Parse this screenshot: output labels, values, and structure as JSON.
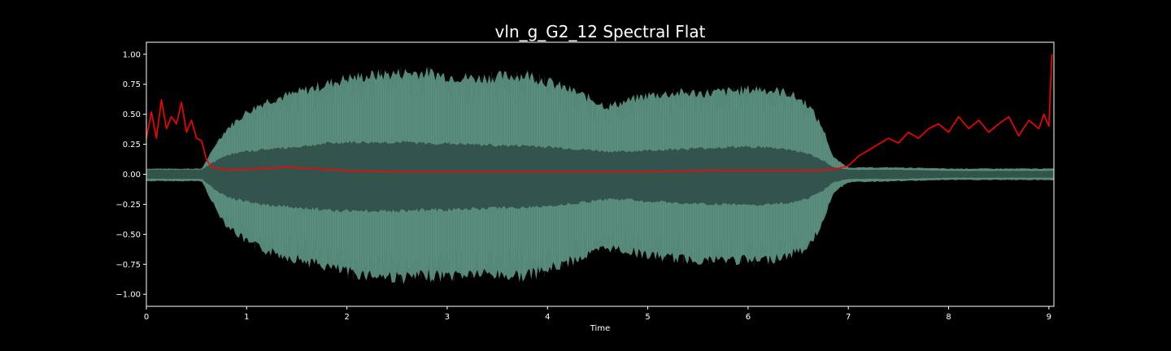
{
  "chart_data": {
    "type": "line",
    "title": "vln_g_G2_12 Spectral Flat",
    "xlabel": "Time",
    "ylabel": "",
    "xlim": [
      0,
      9.05
    ],
    "ylim": [
      -1.1,
      1.1
    ],
    "x_ticks": [
      0,
      1,
      2,
      3,
      4,
      5,
      6,
      7,
      8,
      9
    ],
    "x_tick_labels": [
      "0",
      "1",
      "2",
      "3",
      "4",
      "5",
      "6",
      "7",
      "8",
      "9"
    ],
    "y_ticks": [
      -1.0,
      -0.75,
      -0.5,
      -0.25,
      0.0,
      0.25,
      0.5,
      0.75,
      1.0
    ],
    "y_tick_labels": [
      "−1.00",
      "−0.75",
      "−0.50",
      "−0.25",
      "0.00",
      "0.25",
      "0.50",
      "0.75",
      "1.00"
    ],
    "grid": false,
    "colors": {
      "background": "#000000",
      "axes": "#ffffff",
      "waveform_outer": "#5a8f80",
      "waveform_inner": "#33544c",
      "spectral_flatness": "#ff0000"
    },
    "series": [
      {
        "kind": "waveform-envelope",
        "x": [
          0,
          0.3,
          0.55,
          0.62,
          0.7,
          0.8,
          1.0,
          1.2,
          1.5,
          1.8,
          2.0,
          2.3,
          2.6,
          2.8,
          3.0,
          3.3,
          3.6,
          3.8,
          4.0,
          4.3,
          4.6,
          4.8,
          5.0,
          5.3,
          5.6,
          5.9,
          6.1,
          6.4,
          6.6,
          6.75,
          6.85,
          7.0,
          7.5,
          8.0,
          8.5,
          9.05
        ],
        "upper": [
          0.05,
          0.05,
          0.05,
          0.15,
          0.28,
          0.4,
          0.55,
          0.65,
          0.72,
          0.8,
          0.85,
          0.88,
          0.9,
          0.9,
          0.87,
          0.85,
          0.87,
          0.88,
          0.82,
          0.72,
          0.6,
          0.65,
          0.7,
          0.72,
          0.72,
          0.74,
          0.76,
          0.72,
          0.62,
          0.4,
          0.15,
          0.06,
          0.06,
          0.05,
          0.05,
          0.05
        ],
        "lower": [
          -0.06,
          -0.06,
          -0.06,
          -0.18,
          -0.32,
          -0.45,
          -0.6,
          -0.68,
          -0.75,
          -0.82,
          -0.87,
          -0.9,
          -0.92,
          -0.9,
          -0.9,
          -0.88,
          -0.9,
          -0.9,
          -0.85,
          -0.75,
          -0.65,
          -0.68,
          -0.72,
          -0.75,
          -0.76,
          -0.76,
          -0.77,
          -0.72,
          -0.65,
          -0.42,
          -0.16,
          -0.07,
          -0.06,
          -0.05,
          -0.05,
          -0.05
        ],
        "inner_upper": [
          0.04,
          0.04,
          0.04,
          0.08,
          0.12,
          0.17,
          0.2,
          0.22,
          0.24,
          0.27,
          0.28,
          0.28,
          0.28,
          0.27,
          0.27,
          0.26,
          0.25,
          0.25,
          0.24,
          0.22,
          0.2,
          0.2,
          0.21,
          0.22,
          0.23,
          0.24,
          0.24,
          0.22,
          0.18,
          0.12,
          0.06,
          0.04,
          0.04,
          0.03,
          0.03,
          0.03
        ],
        "inner_lower": [
          -0.04,
          -0.04,
          -0.04,
          -0.09,
          -0.14,
          -0.2,
          -0.24,
          -0.27,
          -0.29,
          -0.31,
          -0.32,
          -0.32,
          -0.32,
          -0.31,
          -0.31,
          -0.3,
          -0.29,
          -0.29,
          -0.28,
          -0.25,
          -0.22,
          -0.22,
          -0.24,
          -0.25,
          -0.26,
          -0.27,
          -0.27,
          -0.25,
          -0.21,
          -0.14,
          -0.07,
          -0.04,
          -0.04,
          -0.03,
          -0.03,
          -0.03
        ]
      },
      {
        "kind": "spectral-flatness",
        "x": [
          0.0,
          0.05,
          0.1,
          0.15,
          0.2,
          0.25,
          0.3,
          0.35,
          0.4,
          0.45,
          0.5,
          0.55,
          0.6,
          0.65,
          0.7,
          0.8,
          1.0,
          1.2,
          1.4,
          1.6,
          1.8,
          2.0,
          2.5,
          3.0,
          3.5,
          4.0,
          4.5,
          5.0,
          5.5,
          6.0,
          6.4,
          6.7,
          6.8,
          6.9,
          7.0,
          7.1,
          7.2,
          7.3,
          7.4,
          7.5,
          7.6,
          7.7,
          7.8,
          7.9,
          8.0,
          8.1,
          8.2,
          8.3,
          8.4,
          8.5,
          8.6,
          8.7,
          8.8,
          8.9,
          8.95,
          9.0,
          9.03
        ],
        "y": [
          0.3,
          0.52,
          0.3,
          0.62,
          0.38,
          0.48,
          0.42,
          0.6,
          0.35,
          0.45,
          0.3,
          0.28,
          0.12,
          0.06,
          0.05,
          0.04,
          0.04,
          0.05,
          0.06,
          0.05,
          0.04,
          0.03,
          0.02,
          0.02,
          0.02,
          0.02,
          0.02,
          0.02,
          0.03,
          0.03,
          0.03,
          0.03,
          0.04,
          0.05,
          0.07,
          0.15,
          0.2,
          0.25,
          0.3,
          0.26,
          0.35,
          0.3,
          0.38,
          0.42,
          0.35,
          0.48,
          0.38,
          0.45,
          0.35,
          0.42,
          0.48,
          0.32,
          0.45,
          0.38,
          0.5,
          0.4,
          1.0
        ]
      }
    ]
  }
}
